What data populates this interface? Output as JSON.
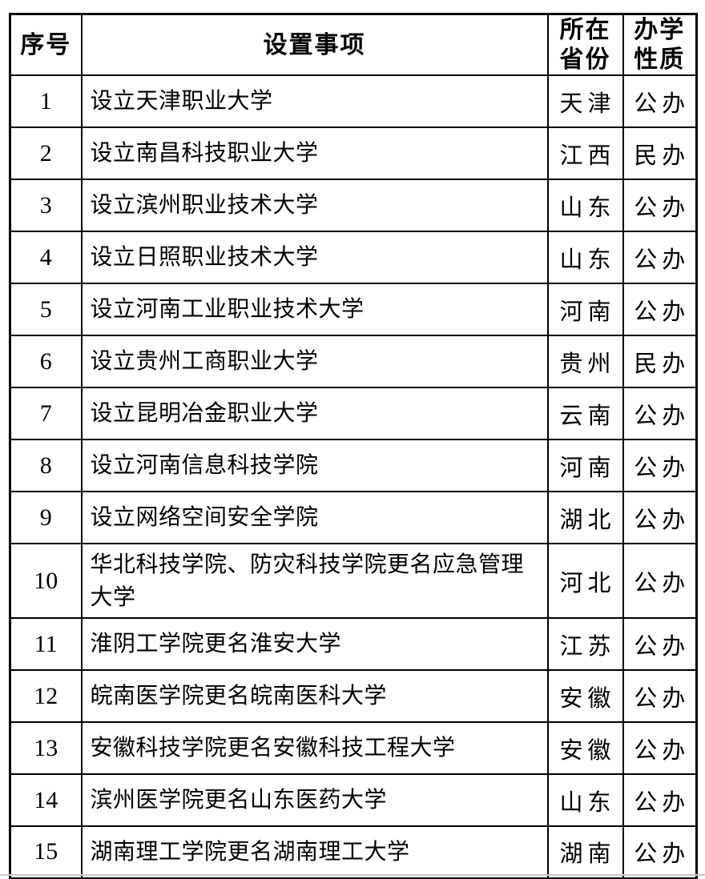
{
  "table": {
    "headers": {
      "index": "序号",
      "item": "设置事项",
      "province": "所在省份",
      "nature": "办学性质"
    },
    "rows": [
      {
        "num": "1",
        "item": "设立天津职业大学",
        "province": "天津",
        "nature": "公办"
      },
      {
        "num": "2",
        "item": "设立南昌科技职业大学",
        "province": "江西",
        "nature": "民办"
      },
      {
        "num": "3",
        "item": "设立滨州职业技术大学",
        "province": "山东",
        "nature": "公办"
      },
      {
        "num": "4",
        "item": "设立日照职业技术大学",
        "province": "山东",
        "nature": "公办"
      },
      {
        "num": "5",
        "item": "设立河南工业职业技术大学",
        "province": "河南",
        "nature": "公办"
      },
      {
        "num": "6",
        "item": "设立贵州工商职业大学",
        "province": "贵州",
        "nature": "民办"
      },
      {
        "num": "7",
        "item": "设立昆明冶金职业大学",
        "province": "云南",
        "nature": "公办"
      },
      {
        "num": "8",
        "item": "设立河南信息科技学院",
        "province": "河南",
        "nature": "公办"
      },
      {
        "num": "9",
        "item": "设立网络空间安全学院",
        "province": "湖北",
        "nature": "公办"
      },
      {
        "num": "10",
        "item": "华北科技学院、防灾科技学院更名应急管理大学",
        "province": "河北",
        "nature": "公办"
      },
      {
        "num": "11",
        "item": "淮阴工学院更名淮安大学",
        "province": "江苏",
        "nature": "公办"
      },
      {
        "num": "12",
        "item": "皖南医学院更名皖南医科大学",
        "province": "安徽",
        "nature": "公办"
      },
      {
        "num": "13",
        "item": "安徽科技学院更名安徽科技工程大学",
        "province": "安徽",
        "nature": "公办"
      },
      {
        "num": "14",
        "item": "滨州医学院更名山东医药大学",
        "province": "山东",
        "nature": "公办"
      },
      {
        "num": "15",
        "item": "湖南理工学院更名湖南理工大学",
        "province": "湖南",
        "nature": "公办"
      }
    ],
    "colors": {
      "border": "#000000",
      "text": "#000000",
      "background": "#ffffff",
      "page_edge_line": "#c9c9c9"
    }
  }
}
